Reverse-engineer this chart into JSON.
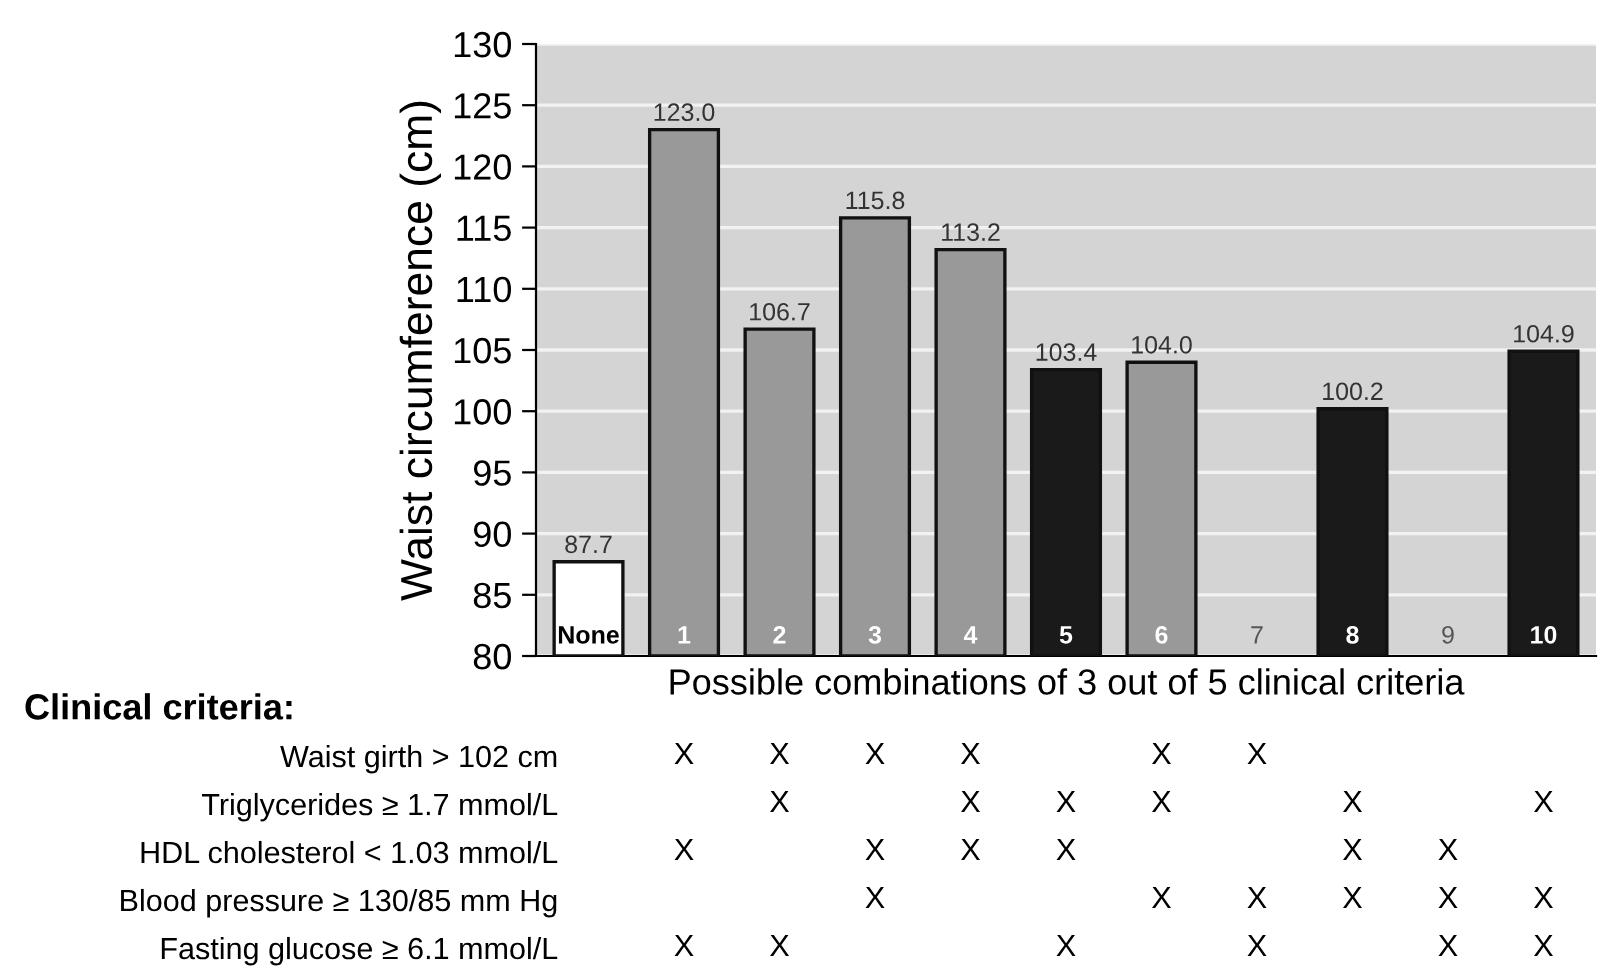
{
  "chart_data": [
    {
      "type": "bar",
      "ylabel": "Waist circumference (cm)",
      "xlabel": "Possible combinations of 3 out of 5 clinical criteria",
      "categories": [
        "None",
        "1",
        "2",
        "3",
        "4",
        "5",
        "6",
        "7",
        "8",
        "9",
        "10"
      ],
      "values": [
        87.7,
        123.0,
        106.7,
        115.8,
        113.2,
        103.4,
        104.0,
        null,
        100.2,
        null,
        104.9
      ],
      "value_labels": [
        "87.7",
        "123.0",
        "106.7",
        "115.8",
        "113.2",
        "103.4",
        "104.0",
        null,
        "100.2",
        null,
        "104.9"
      ],
      "colors": [
        "#ffffff",
        "#999999",
        "#999999",
        "#999999",
        "#999999",
        "#1a1a1a",
        "#999999",
        "#999999",
        "#1a1a1a",
        "#999999",
        "#1a1a1a"
      ],
      "ylim": [
        80,
        130
      ],
      "yticks": [
        80,
        85,
        90,
        95,
        100,
        105,
        110,
        115,
        120,
        125,
        130
      ],
      "grid": "y"
    },
    {
      "type": "other",
      "title": "Clinical criteria:",
      "y_categories": [
        "Waist girth > 102 cm",
        "Triglycerides ≥ 1.7 mmol/L",
        "HDL cholesterol < 1.03 mmol/L",
        "Blood pressure ≥ 130/85 mm Hg",
        "Fasting glucose ≥ 6.1 mmol/L"
      ],
      "annotations": [
        {
          "text": "X",
          "x": "1",
          "y": "Waist girth > 102 cm"
        },
        {
          "text": "X",
          "x": "2",
          "y": "Waist girth > 102 cm"
        },
        {
          "text": "X",
          "x": "3",
          "y": "Waist girth > 102 cm"
        },
        {
          "text": "X",
          "x": "4",
          "y": "Waist girth > 102 cm"
        },
        {
          "text": "X",
          "x": "6",
          "y": "Waist girth > 102 cm"
        },
        {
          "text": "X",
          "x": "7",
          "y": "Waist girth > 102 cm"
        },
        {
          "text": "X",
          "x": "2",
          "y": "Triglycerides ≥ 1.7 mmol/L"
        },
        {
          "text": "X",
          "x": "4",
          "y": "Triglycerides ≥ 1.7 mmol/L"
        },
        {
          "text": "X",
          "x": "5",
          "y": "Triglycerides ≥ 1.7 mmol/L"
        },
        {
          "text": "X",
          "x": "6",
          "y": "Triglycerides ≥ 1.7 mmol/L"
        },
        {
          "text": "X",
          "x": "8",
          "y": "Triglycerides ≥ 1.7 mmol/L"
        },
        {
          "text": "X",
          "x": "10",
          "y": "Triglycerides ≥ 1.7 mmol/L"
        },
        {
          "text": "X",
          "x": "1",
          "y": "HDL cholesterol < 1.03 mmol/L"
        },
        {
          "text": "X",
          "x": "3",
          "y": "HDL cholesterol < 1.03 mmol/L"
        },
        {
          "text": "X",
          "x": "4",
          "y": "HDL cholesterol < 1.03 mmol/L"
        },
        {
          "text": "X",
          "x": "5",
          "y": "HDL cholesterol < 1.03 mmol/L"
        },
        {
          "text": "X",
          "x": "8",
          "y": "HDL cholesterol < 1.03 mmol/L"
        },
        {
          "text": "X",
          "x": "9",
          "y": "HDL cholesterol < 1.03 mmol/L"
        },
        {
          "text": "X",
          "x": "3",
          "y": "Blood pressure ≥ 130/85 mm Hg"
        },
        {
          "text": "X",
          "x": "6",
          "y": "Blood pressure ≥ 130/85 mm Hg"
        },
        {
          "text": "X",
          "x": "7",
          "y": "Blood pressure ≥ 130/85 mm Hg"
        },
        {
          "text": "X",
          "x": "8",
          "y": "Blood pressure ≥ 130/85 mm Hg"
        },
        {
          "text": "X",
          "x": "9",
          "y": "Blood pressure ≥ 130/85 mm Hg"
        },
        {
          "text": "X",
          "x": "10",
          "y": "Blood pressure ≥ 130/85 mm Hg"
        },
        {
          "text": "X",
          "x": "1",
          "y": "Fasting glucose ≥ 6.1 mmol/L"
        },
        {
          "text": "X",
          "x": "2",
          "y": "Fasting glucose ≥ 6.1 mmol/L"
        },
        {
          "text": "X",
          "x": "5",
          "y": "Fasting glucose ≥ 6.1 mmol/L"
        },
        {
          "text": "X",
          "x": "7",
          "y": "Fasting glucose ≥ 6.1 mmol/L"
        },
        {
          "text": "X",
          "x": "9",
          "y": "Fasting glucose ≥ 6.1 mmol/L"
        },
        {
          "text": "X",
          "x": "10",
          "y": "Fasting glucose ≥ 6.1 mmol/L"
        }
      ]
    }
  ]
}
